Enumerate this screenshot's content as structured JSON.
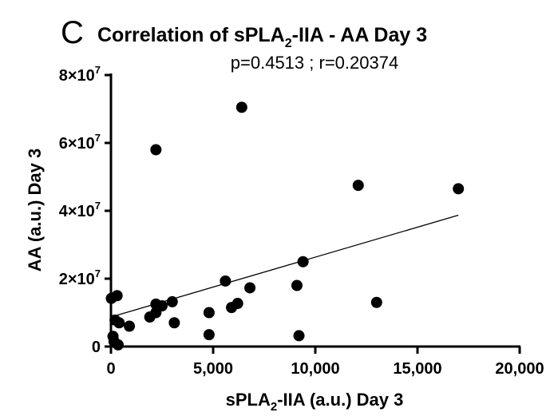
{
  "panel_letter": "C",
  "chart_data": {
    "type": "scatter",
    "title": "Correlation of sPLA2-IIA - AA Day 3",
    "subtitle": "p=0.4513 ; r=0.20374",
    "xlabel": "sPLA2-IIA (a.u.) Day 3",
    "ylabel": "AA (a.u.) Day 3",
    "xlim": [
      0,
      20000
    ],
    "ylim": [
      0,
      80000000
    ],
    "x_ticks": [
      "0",
      "5,000",
      "10,000",
      "15,000",
      "20,000"
    ],
    "y_ticks": [
      {
        "base": "0",
        "exp": ""
      },
      {
        "base": "2×10",
        "exp": "7"
      },
      {
        "base": "4×10",
        "exp": "7"
      },
      {
        "base": "6×10",
        "exp": "7"
      },
      {
        "base": "8×10",
        "exp": "7"
      }
    ],
    "grid": false,
    "regression_line": {
      "x": [
        0,
        17000
      ],
      "y": [
        8700000,
        38700000
      ]
    },
    "points": [
      {
        "x": 20,
        "y": 14200000
      },
      {
        "x": 300,
        "y": 15000000
      },
      {
        "x": 200,
        "y": 7800000
      },
      {
        "x": 400,
        "y": 7000000
      },
      {
        "x": 900,
        "y": 6000000
      },
      {
        "x": 100,
        "y": 3000000
      },
      {
        "x": 150,
        "y": 1500000
      },
      {
        "x": 350,
        "y": 500000
      },
      {
        "x": 1900,
        "y": 8700000
      },
      {
        "x": 2200,
        "y": 10000000
      },
      {
        "x": 2200,
        "y": 12500000
      },
      {
        "x": 2500,
        "y": 12000000
      },
      {
        "x": 2200,
        "y": 58000000
      },
      {
        "x": 3000,
        "y": 13200000
      },
      {
        "x": 3100,
        "y": 7000000
      },
      {
        "x": 4800,
        "y": 10000000
      },
      {
        "x": 4800,
        "y": 3500000
      },
      {
        "x": 5600,
        "y": 19300000
      },
      {
        "x": 5900,
        "y": 11500000
      },
      {
        "x": 6200,
        "y": 12700000
      },
      {
        "x": 6400,
        "y": 70500000
      },
      {
        "x": 6800,
        "y": 17300000
      },
      {
        "x": 9100,
        "y": 18000000
      },
      {
        "x": 9200,
        "y": 3200000
      },
      {
        "x": 9400,
        "y": 25000000
      },
      {
        "x": 12100,
        "y": 47500000
      },
      {
        "x": 13000,
        "y": 13000000
      },
      {
        "x": 17000,
        "y": 46500000
      }
    ]
  }
}
